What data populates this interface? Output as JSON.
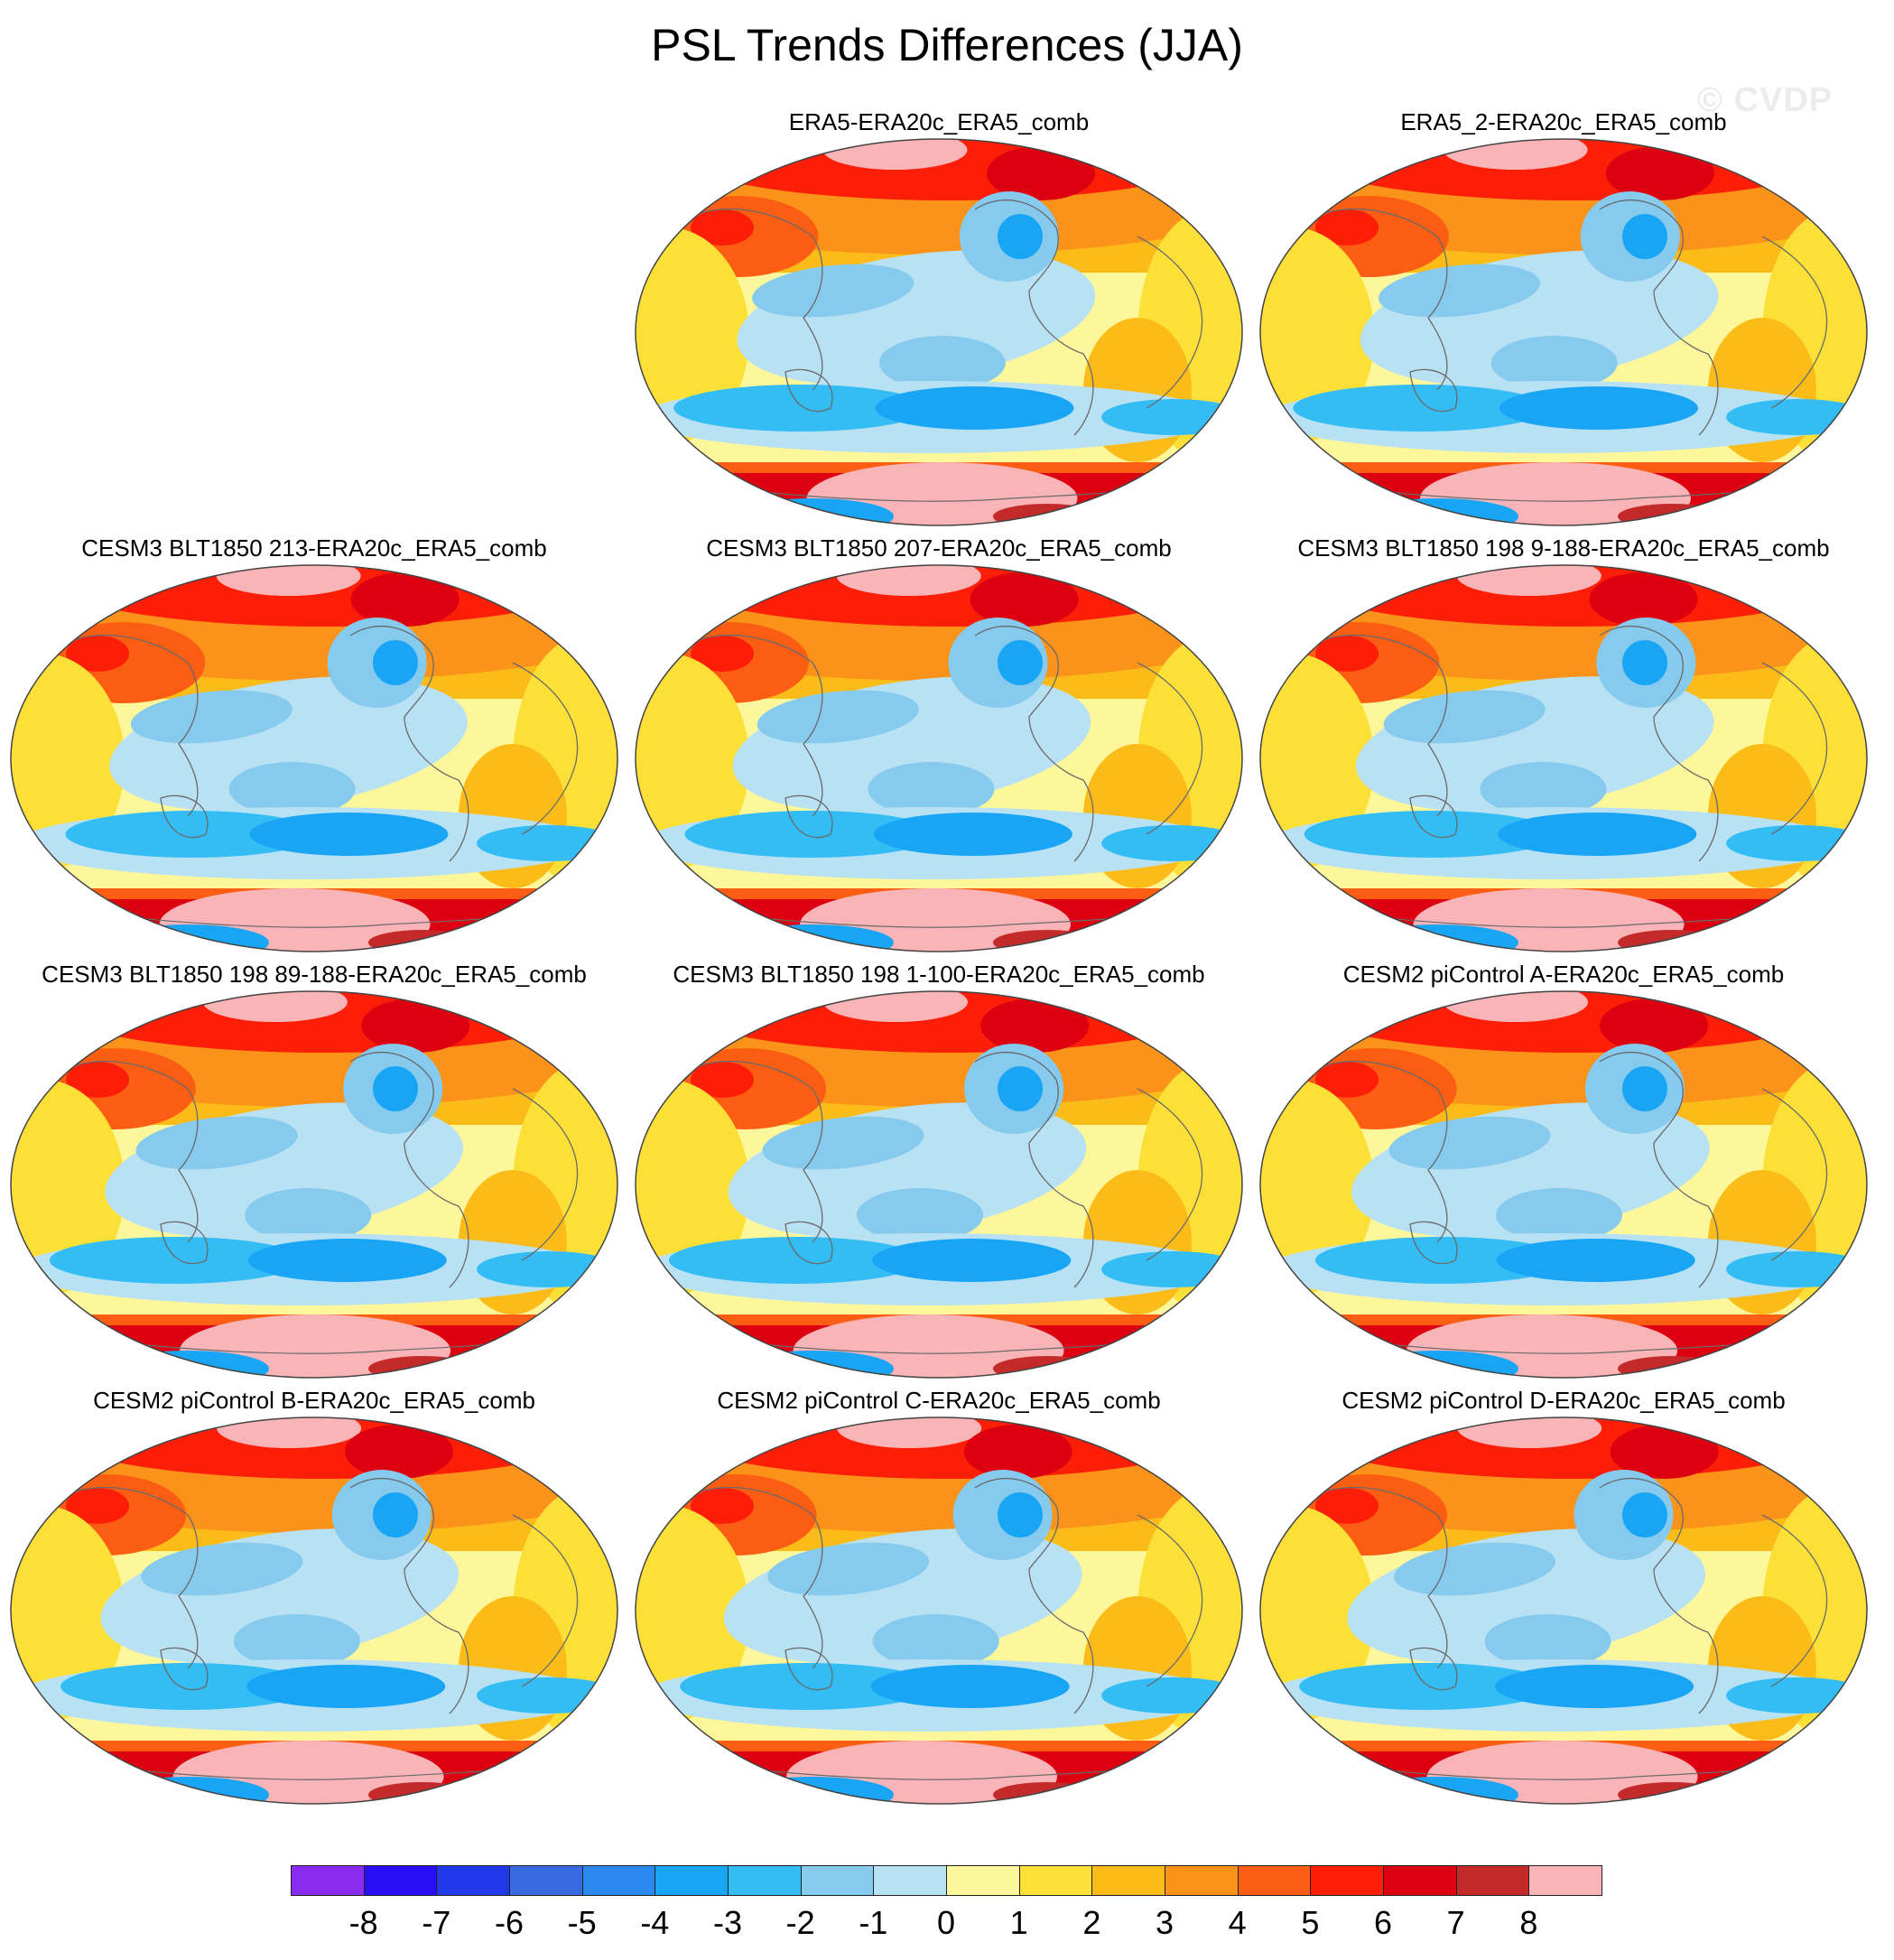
{
  "title": "PSL Trends Differences (JJA)",
  "watermark": "© CVDP",
  "colors": {
    "levels": [
      "#8a2cf0",
      "#2a0ef5",
      "#2038e8",
      "#3a6ae0",
      "#2a88ee",
      "#19a5f5",
      "#34bdf4",
      "#86caee",
      "#b9e1f4",
      "#fdf79c",
      "#fce038",
      "#fbbc1a",
      "#fb931a",
      "#fb5e12",
      "#fd1e08",
      "#dd0010",
      "#c42a2a",
      "#f9b4b8"
    ],
    "coast": "#6a6a6a"
  },
  "colorbar": {
    "ticks": [
      "-8",
      "-7",
      "-6",
      "-5",
      "-4",
      "-3",
      "-2",
      "-1",
      "0",
      "1",
      "2",
      "3",
      "4",
      "5",
      "6",
      "7",
      "8"
    ]
  },
  "panels": [
    {
      "title": "ERA5-ERA20c_ERA5_comb",
      "variant": 0
    },
    {
      "title": "ERA5_2-ERA20c_ERA5_comb",
      "variant": 1
    },
    {
      "title": "CESM3 BLT1850 213-ERA20c_ERA5_comb",
      "variant": 2
    },
    {
      "title": "CESM3 BLT1850 207-ERA20c_ERA5_comb",
      "variant": 3
    },
    {
      "title": "CESM3 BLT1850 198 9-188-ERA20c_ERA5_comb",
      "variant": 4
    },
    {
      "title": "CESM3 BLT1850 198 89-188-ERA20c_ERA5_comb",
      "variant": 5
    },
    {
      "title": "CESM3 BLT1850 198 1-100-ERA20c_ERA5_comb",
      "variant": 6
    },
    {
      "title": "CESM2 piControl A-ERA20c_ERA5_comb",
      "variant": 7
    },
    {
      "title": "CESM2 piControl B-ERA20c_ERA5_comb",
      "variant": 8
    },
    {
      "title": "CESM2 piControl C-ERA20c_ERA5_comb",
      "variant": 9
    },
    {
      "title": "CESM2 piControl D-ERA20c_ERA5_comb",
      "variant": 10
    }
  ]
}
